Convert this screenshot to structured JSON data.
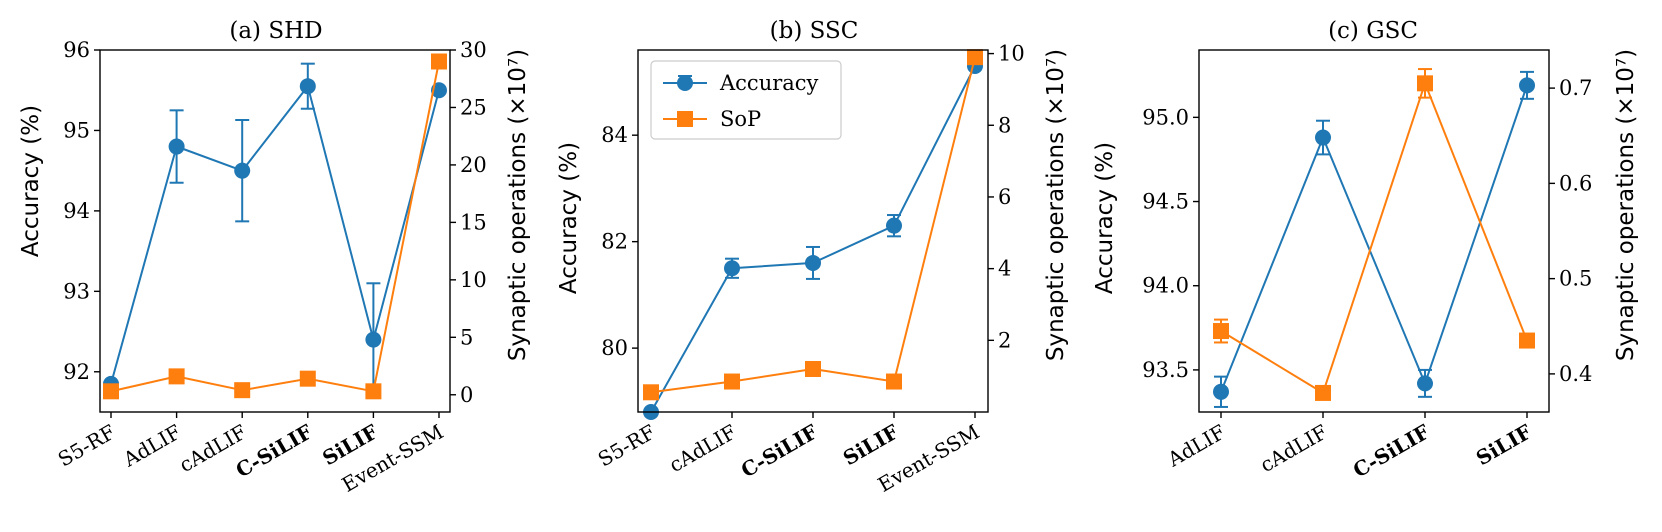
{
  "chart_data": [
    {
      "type": "line",
      "title": "(a) SHD",
      "ylabel_left": "Accuracy (%)",
      "ylabel_right": "Synaptic operations (×10⁷)",
      "categories": [
        "S5-RF",
        "AdLIF",
        "cAdLIF",
        "C-SiLIF",
        "SiLIF",
        "Event-SSM"
      ],
      "bold_categories": [
        "C-SiLIF",
        "SiLIF"
      ],
      "ylim_left": [
        91.5,
        96.0
      ],
      "yticks_left": [
        "92",
        "93",
        "94",
        "95",
        "96"
      ],
      "ylim_right": [
        -1.5,
        30
      ],
      "yticks_right": [
        "0",
        "5",
        "10",
        "15",
        "20",
        "25",
        "30"
      ],
      "series": [
        {
          "name": "Accuracy",
          "axis": "left",
          "color": "#1f77b4",
          "marker": "circle",
          "values": [
            91.85,
            94.8,
            94.5,
            95.55,
            92.4,
            95.5
          ],
          "errors": [
            0.0,
            0.45,
            0.63,
            0.28,
            0.7,
            0.0
          ]
        },
        {
          "name": "SoP",
          "axis": "right",
          "color": "#ff7f0e",
          "marker": "square",
          "values": [
            0.3,
            1.6,
            0.4,
            1.4,
            0.3,
            29.0
          ],
          "errors": [
            0.3,
            0.4,
            0.0,
            0.4,
            0.5,
            0.0
          ]
        }
      ]
    },
    {
      "type": "line",
      "title": "(b) SSC",
      "ylabel_left": "Accuracy (%)",
      "ylabel_right": "Synaptic operations (×10⁷)",
      "categories": [
        "S5-RF",
        "cAdLIF",
        "C-SiLIF",
        "SiLIF",
        "Event-SSM"
      ],
      "bold_categories": [
        "C-SiLIF",
        "SiLIF"
      ],
      "ylim_left": [
        78.8,
        85.6
      ],
      "yticks_left": [
        "80",
        "82",
        "84"
      ],
      "ylim_right": [
        0.0,
        10.1
      ],
      "yticks_right": [
        "2",
        "4",
        "6",
        "8",
        "10"
      ],
      "legend": {
        "position": "upper-left",
        "entries": [
          "Accuracy",
          "SoP"
        ]
      },
      "series": [
        {
          "name": "Accuracy",
          "axis": "left",
          "color": "#1f77b4",
          "marker": "circle",
          "values": [
            78.8,
            81.5,
            81.6,
            82.3,
            85.3
          ],
          "errors": [
            0.0,
            0.18,
            0.3,
            0.2,
            0.0
          ]
        },
        {
          "name": "SoP",
          "axis": "right",
          "color": "#ff7f0e",
          "marker": "square",
          "values": [
            0.55,
            0.85,
            1.2,
            0.85,
            9.9
          ],
          "errors": [
            0.0,
            0.0,
            0.0,
            0.0,
            0.0
          ]
        }
      ]
    },
    {
      "type": "line",
      "title": "(c) GSC",
      "ylabel_left": "Accuracy (%)",
      "ylabel_right": "Synaptic operations (×10⁷)",
      "categories": [
        "AdLIF",
        "cAdLIF",
        "C-SiLIF",
        "SiLIF"
      ],
      "bold_categories": [
        "C-SiLIF",
        "SiLIF"
      ],
      "ylim_left": [
        93.25,
        95.4
      ],
      "yticks_left": [
        "93.5",
        "94.0",
        "94.5",
        "95.0"
      ],
      "ylim_right": [
        0.36,
        0.74
      ],
      "yticks_right": [
        "0.4",
        "0.5",
        "0.6",
        "0.7"
      ],
      "series": [
        {
          "name": "Accuracy",
          "axis": "left",
          "color": "#1f77b4",
          "marker": "circle",
          "values": [
            93.37,
            94.88,
            93.42,
            95.19
          ],
          "errors": [
            0.09,
            0.1,
            0.08,
            0.08
          ]
        },
        {
          "name": "SoP",
          "axis": "right",
          "color": "#ff7f0e",
          "marker": "square",
          "values": [
            0.445,
            0.38,
            0.705,
            0.435
          ],
          "errors": [
            0.012,
            0.005,
            0.015,
            0.005
          ]
        }
      ]
    }
  ]
}
